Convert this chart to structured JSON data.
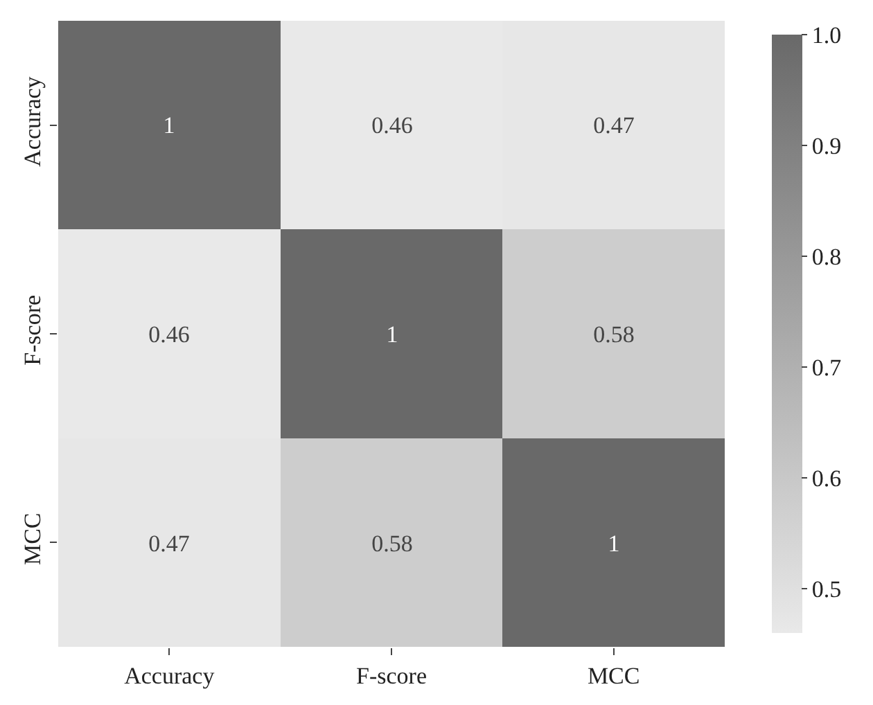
{
  "chart_data": {
    "type": "heatmap",
    "categories": [
      "Accuracy",
      "F-score",
      "MCC"
    ],
    "y_categories": [
      "Accuracy",
      "F-score",
      "MCC"
    ],
    "cells": [
      [
        1,
        0.46,
        0.47
      ],
      [
        0.46,
        1,
        0.58
      ],
      [
        0.47,
        0.58,
        1
      ]
    ],
    "data_labels": true,
    "clim": [
      0.46,
      1.0
    ],
    "cticks": [
      0.5,
      0.6,
      0.7,
      0.8,
      0.9,
      {
        "value": 1,
        "label": "1.0"
      }
    ]
  }
}
